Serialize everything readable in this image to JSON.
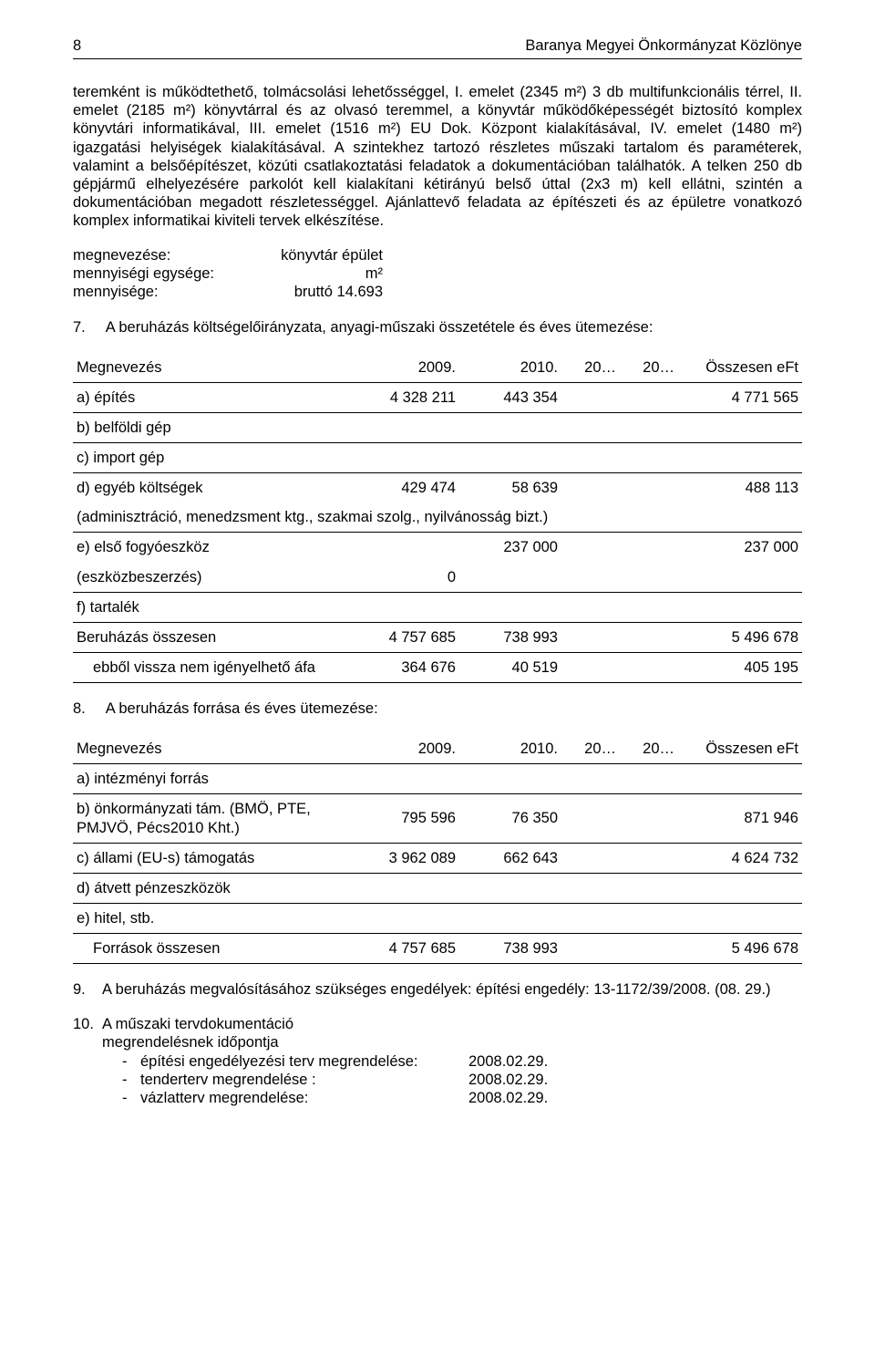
{
  "page_number": "8",
  "header_title": "Baranya Megyei Önkormányzat Közlönye",
  "body_text": "teremként is működtethető, tolmácsolási lehetősséggel, I. emelet (2345 m²) 3 db multifunkcionális térrel, II. emelet (2185 m²) könyvtárral és az olvasó teremmel, a könyvtár működőképességét biztosító komplex könyvtári informatikával, III. emelet (1516 m²) EU Dok. Központ kialakításával, IV. emelet (1480 m²) igazgatási helyiségek kialakításával. A szintekhez tartozó részletes műszaki tartalom és paraméterek, valamint a belsőépítészet, közúti csatlakoztatási feladatok a dokumentációban találhatók. A telken 250 db gépjármű elhelyezésére parkolót kell kialakítani kétirányú belső úttal (2x3 m) kell ellátni, szintén a dokumentációban megadott részletességgel. Ajánlattevő feladata az építészeti és az épületre vonatkozó komplex informatikai kiviteli tervek elkészítése.",
  "spec": {
    "name_label": "megnevezése:",
    "name_value": "könyvtár épület",
    "unit_label": "mennyiségi egysége:",
    "unit_value": "m²",
    "qty_label": "mennyisége:",
    "qty_value": "bruttó 14.693"
  },
  "section7": {
    "num": "7.",
    "title": "A beruházás költségelőirányzata, anyagi-műszaki összetétele és éves ütemezése:"
  },
  "table1": {
    "columns": [
      {
        "label": "Megnevezés",
        "align": "left",
        "width": "38%"
      },
      {
        "label": "2009.",
        "align": "right",
        "width": "15%"
      },
      {
        "label": "2010.",
        "align": "right",
        "width": "14%"
      },
      {
        "label": "20…",
        "align": "right",
        "width": "8%"
      },
      {
        "label": "20…",
        "align": "right",
        "width": "8%"
      },
      {
        "label": "Összesen eFt",
        "align": "right",
        "width": "17%"
      }
    ],
    "rows": [
      {
        "cells": [
          "a) építés",
          "4 328 211",
          "443 354",
          "",
          "",
          "4 771 565"
        ],
        "rule_after": true
      },
      {
        "cells": [
          "b) belföldi gép",
          "",
          "",
          "",
          "",
          ""
        ],
        "rule_after": true
      },
      {
        "cells": [
          "c) import gép",
          "",
          "",
          "",
          "",
          ""
        ],
        "rule_after": true
      },
      {
        "cells": [
          "d) egyéb költségek",
          "429 474",
          "58 639",
          "",
          "",
          "488 113"
        ],
        "rule_after": false,
        "note": "(adminisztráció, menedzsment ktg., szakmai szolg., nyilvánosság bizt.)"
      },
      {
        "cells": [
          "e) első fogyóeszköz",
          "",
          "237 000",
          "",
          "",
          "237 000"
        ],
        "rule_after": false,
        "second_line": [
          "(eszközbeszerzés)",
          "0",
          "",
          "",
          "",
          ""
        ]
      },
      {
        "cells": [
          "f) tartalék",
          "",
          "",
          "",
          "",
          ""
        ],
        "rule_after": false
      },
      {
        "cells": [
          "Beruházás összesen",
          "4 757 685",
          "738 993",
          "",
          "",
          "5 496 678"
        ],
        "total": true
      },
      {
        "cells": [
          "   ebből vissza nem igényelhető áfa",
          "364 676",
          "40 519",
          "",
          "",
          "405 195"
        ],
        "rule_after": true,
        "indent": true
      }
    ]
  },
  "section8": {
    "num": "8.",
    "title": "A beruházás forrása és éves ütemezése:"
  },
  "table2": {
    "columns": [
      {
        "label": "Megnevezés",
        "align": "left",
        "width": "38%"
      },
      {
        "label": "2009.",
        "align": "right",
        "width": "15%"
      },
      {
        "label": "2010.",
        "align": "right",
        "width": "14%"
      },
      {
        "label": "20…",
        "align": "right",
        "width": "8%"
      },
      {
        "label": "20…",
        "align": "right",
        "width": "8%"
      },
      {
        "label": "Összesen eFt",
        "align": "right",
        "width": "17%"
      }
    ],
    "rows": [
      {
        "cells": [
          "a) intézményi forrás",
          "",
          "",
          "",
          "",
          ""
        ],
        "rule_after": true
      },
      {
        "cells": [
          "b) önkormányzati tám. (BMÖ, PTE, PMJVÖ, Pécs2010 Kht.)",
          "795 596",
          "76 350",
          "",
          "",
          "871 946"
        ],
        "rule_after": true
      },
      {
        "cells": [
          "c) állami (EU-s) támogatás",
          "3 962 089",
          "662 643",
          "",
          "",
          "4 624 732"
        ],
        "rule_after": true
      },
      {
        "cells": [
          "d) átvett pénzeszközök",
          "",
          "",
          "",
          "",
          ""
        ],
        "rule_after": true
      },
      {
        "cells": [
          "e) hitel, stb.",
          "",
          "",
          "",
          "",
          ""
        ],
        "rule_after": true
      },
      {
        "cells": [
          "   Források összesen",
          "4 757 685",
          "738 993",
          "",
          "",
          "5 496 678"
        ],
        "total": true,
        "indent": true
      }
    ]
  },
  "section9": {
    "num": "9.",
    "text": "A beruházás megvalósításához szükséges engedélyek: építési engedély: 13-1172/39/2008. (08. 29.)"
  },
  "section10": {
    "num": "10.",
    "title_line1": "A műszaki tervdokumentáció",
    "title_line2": "megrendelésnek időpontja",
    "items": [
      {
        "label": "építési engedélyezési terv megrendelése:",
        "value": "2008.02.29."
      },
      {
        "label": "tenderterv megrendelése :",
        "value": "2008.02.29."
      },
      {
        "label": "vázlatterv megrendelése:",
        "value": "2008.02.29."
      }
    ]
  }
}
